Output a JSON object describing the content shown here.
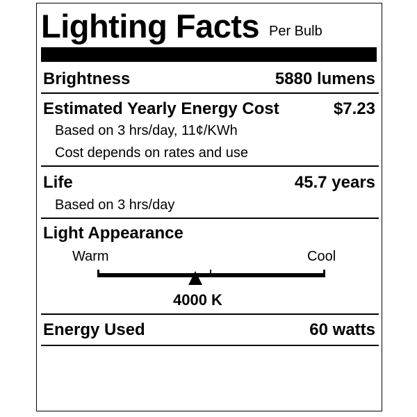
{
  "header": {
    "title": "Lighting Facts",
    "subtitle": "Per Bulb"
  },
  "brightness": {
    "label": "Brightness",
    "value": "5880 lumens"
  },
  "energy_cost": {
    "label": "Estimated Yearly Energy Cost",
    "value": "$7.23",
    "note1": "Based on 3 hrs/day, 11¢/KWh",
    "note2": "Cost depends on rates and use"
  },
  "life": {
    "label": "Life",
    "value": "45.7 years",
    "note": "Based on 3 hrs/day"
  },
  "appearance": {
    "label": "Light Appearance",
    "warm_label": "Warm",
    "cool_label": "Cool",
    "value": "4000 K",
    "marker_fraction": 0.43
  },
  "energy_used": {
    "label": "Energy Used",
    "value": "60 watts"
  }
}
